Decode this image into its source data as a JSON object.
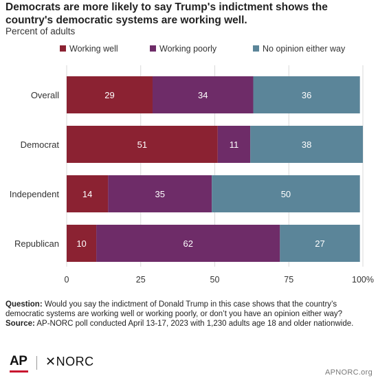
{
  "title": "Democrats are more likely to say Trump's indictment shows the country's democratic systems are working well.",
  "subtitle": "Percent of adults",
  "chart_data": {
    "type": "bar",
    "orientation": "horizontal",
    "stacked": true,
    "categories": [
      "Overall",
      "Democrat",
      "Independent",
      "Republican"
    ],
    "series": [
      {
        "name": "Working well",
        "values": [
          29,
          51,
          14,
          10
        ],
        "color": "#8b2232"
      },
      {
        "name": "Working poorly",
        "values": [
          34,
          11,
          35,
          62
        ],
        "color": "#6e2c68"
      },
      {
        "name": "No opinion either way",
        "values": [
          36,
          38,
          50,
          27
        ],
        "color": "#5b8599"
      }
    ],
    "xlim": [
      0,
      100
    ],
    "xticks": [
      "0",
      "25",
      "50",
      "75",
      "100%"
    ],
    "xtick_values": [
      0,
      25,
      50,
      75,
      100
    ],
    "grid": true,
    "legend_position": "top"
  },
  "footer": {
    "question_label": "Question:",
    "question_text": " Would you say the indictment of Donald Trump in this case shows that the country’s democratic systems are working well or working poorly, or don’t you have an opinion either way?",
    "source_label": "Source:",
    "source_text": " AP-NORC poll conducted April 13-17, 2023 with 1,230 adults age 18 and older nationwide."
  },
  "logos": {
    "ap": "AP",
    "norc": "✕NORC"
  },
  "site_url": "APNORC.org"
}
